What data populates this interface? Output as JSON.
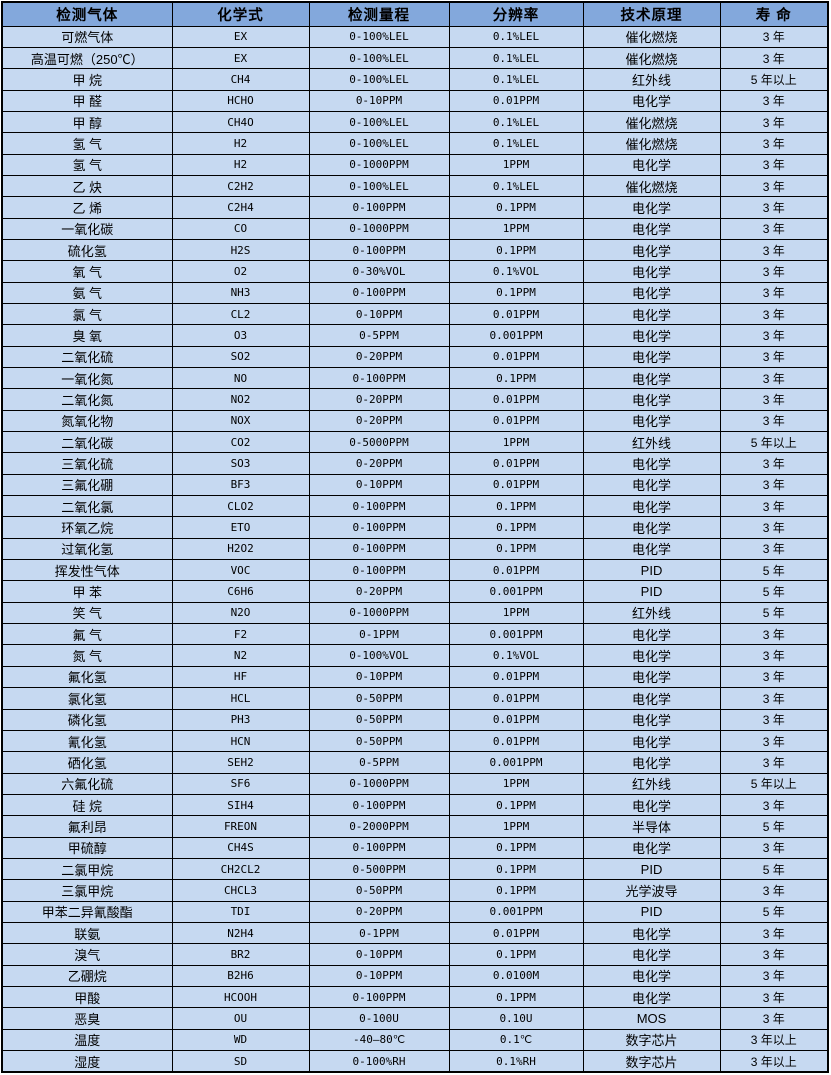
{
  "colors": {
    "header_bg": "#83a8dc",
    "row_bg": "#c6d9f1",
    "border": "#000000",
    "text": "#000000",
    "page_bg": "#ffffff"
  },
  "table": {
    "columns": [
      "检测气体",
      "化学式",
      "检测量程",
      "分辨率",
      "技术原理",
      "寿 命"
    ],
    "rows": [
      [
        "可燃气体",
        "EX",
        "0-100%LEL",
        "0.1%LEL",
        "催化燃烧",
        "3 年"
      ],
      [
        "高温可燃（250℃）",
        "EX",
        "0-100%LEL",
        "0.1%LEL",
        "催化燃烧",
        "3 年"
      ],
      [
        "甲 烷",
        "CH4",
        "0-100%LEL",
        "0.1%LEL",
        "红外线",
        "5 年以上"
      ],
      [
        "甲 醛",
        "HCHO",
        "0-10PPM",
        "0.01PPM",
        "电化学",
        "3 年"
      ],
      [
        "甲 醇",
        "CH4O",
        "0-100%LEL",
        "0.1%LEL",
        "催化燃烧",
        "3 年"
      ],
      [
        "氢 气",
        "H2",
        "0-100%LEL",
        "0.1%LEL",
        "催化燃烧",
        "3 年"
      ],
      [
        "氢 气",
        "H2",
        "0-1000PPM",
        "1PPM",
        "电化学",
        "3 年"
      ],
      [
        "乙 炔",
        "C2H2",
        "0-100%LEL",
        "0.1%LEL",
        "催化燃烧",
        "3 年"
      ],
      [
        "乙 烯",
        "C2H4",
        "0-100PPM",
        "0.1PPM",
        "电化学",
        "3 年"
      ],
      [
        "一氧化碳",
        "CO",
        "0-1000PPM",
        "1PPM",
        "电化学",
        "3 年"
      ],
      [
        "硫化氢",
        "H2S",
        "0-100PPM",
        "0.1PPM",
        "电化学",
        "3 年"
      ],
      [
        "氧 气",
        "O2",
        "0-30%VOL",
        "0.1%VOL",
        "电化学",
        "3 年"
      ],
      [
        "氨 气",
        "NH3",
        "0-100PPM",
        "0.1PPM",
        "电化学",
        "3 年"
      ],
      [
        "氯 气",
        "CL2",
        "0-10PPM",
        "0.01PPM",
        "电化学",
        "3 年"
      ],
      [
        "臭 氧",
        "O3",
        "0-5PPM",
        "0.001PPM",
        "电化学",
        "3 年"
      ],
      [
        "二氧化硫",
        "SO2",
        "0-20PPM",
        "0.01PPM",
        "电化学",
        "3 年"
      ],
      [
        "一氧化氮",
        "NO",
        "0-100PPM",
        "0.1PPM",
        "电化学",
        "3 年"
      ],
      [
        "二氧化氮",
        "NO2",
        "0-20PPM",
        "0.01PPM",
        "电化学",
        "3 年"
      ],
      [
        "氮氧化物",
        "NOX",
        "0-20PPM",
        "0.01PPM",
        "电化学",
        "3 年"
      ],
      [
        "二氧化碳",
        "CO2",
        "0-5000PPM",
        "1PPM",
        "红外线",
        "5 年以上"
      ],
      [
        "三氧化硫",
        "SO3",
        "0-20PPM",
        "0.01PPM",
        "电化学",
        "3 年"
      ],
      [
        "三氟化硼",
        "BF3",
        "0-10PPM",
        "0.01PPM",
        "电化学",
        "3 年"
      ],
      [
        "二氧化氯",
        "CLO2",
        "0-100PPM",
        "0.1PPM",
        "电化学",
        "3 年"
      ],
      [
        "环氧乙烷",
        "ETO",
        "0-100PPM",
        "0.1PPM",
        "电化学",
        "3 年"
      ],
      [
        "过氧化氢",
        "H2O2",
        "0-100PPM",
        "0.1PPM",
        "电化学",
        "3 年"
      ],
      [
        "挥发性气体",
        "VOC",
        "0-100PPM",
        "0.01PPM",
        "PID",
        "5 年"
      ],
      [
        "甲 苯",
        "C6H6",
        "0-20PPM",
        "0.001PPM",
        "PID",
        "5 年"
      ],
      [
        "笑 气",
        "N2O",
        "0-1000PPM",
        "1PPM",
        "红外线",
        "5 年"
      ],
      [
        "氟 气",
        "F2",
        "0-1PPM",
        "0.001PPM",
        "电化学",
        "3 年"
      ],
      [
        "氮 气",
        "N2",
        "0-100%VOL",
        "0.1%VOL",
        "电化学",
        "3 年"
      ],
      [
        "氟化氢",
        "HF",
        "0-10PPM",
        "0.01PPM",
        "电化学",
        "3 年"
      ],
      [
        "氯化氢",
        "HCL",
        "0-50PPM",
        "0.01PPM",
        "电化学",
        "3 年"
      ],
      [
        "磷化氢",
        "PH3",
        "0-50PPM",
        "0.01PPM",
        "电化学",
        "3 年"
      ],
      [
        "氰化氢",
        "HCN",
        "0-50PPM",
        "0.01PPM",
        "电化学",
        "3 年"
      ],
      [
        "硒化氢",
        "SEH2",
        "0-5PPM",
        "0.001PPM",
        "电化学",
        "3 年"
      ],
      [
        "六氟化硫",
        "SF6",
        "0-1000PPM",
        "1PPM",
        "红外线",
        "5 年以上"
      ],
      [
        "硅 烷",
        "SIH4",
        "0-100PPM",
        "0.1PPM",
        "电化学",
        "3 年"
      ],
      [
        "氟利昂",
        "FREON",
        "0-2000PPM",
        "1PPM",
        "半导体",
        "5 年"
      ],
      [
        "甲硫醇",
        "CH4S",
        "0-100PPM",
        "0.1PPM",
        "电化学",
        "3 年"
      ],
      [
        "二氯甲烷",
        "CH2CL2",
        "0-500PPM",
        "0.1PPM",
        "PID",
        "5 年"
      ],
      [
        "三氯甲烷",
        "CHCL3",
        "0-50PPM",
        "0.1PPM",
        "光学波导",
        "3 年"
      ],
      [
        "甲苯二异氰酸酯",
        "TDI",
        "0-20PPM",
        "0.001PPM",
        "PID",
        "5 年"
      ],
      [
        "联氨",
        "N2H4",
        "0-1PPM",
        "0.01PPM",
        "电化学",
        "3 年"
      ],
      [
        "溴气",
        "BR2",
        "0-10PPM",
        "0.1PPM",
        "电化学",
        "3 年"
      ],
      [
        "乙硼烷",
        "B2H6",
        "0-10PPM",
        "0.0100M",
        "电化学",
        "3 年"
      ],
      [
        "甲酸",
        "HCOOH",
        "0-100PPM",
        "0.1PPM",
        "电化学",
        "3 年"
      ],
      [
        "恶臭",
        "OU",
        "0-100U",
        "0.10U",
        "MOS",
        "3 年"
      ],
      [
        "温度",
        "WD",
        "-40—80℃",
        "0.1℃",
        "数字芯片",
        "3 年以上"
      ],
      [
        "湿度",
        "SD",
        "0-100%RH",
        "0.1%RH",
        "数字芯片",
        "3 年以上"
      ]
    ]
  }
}
